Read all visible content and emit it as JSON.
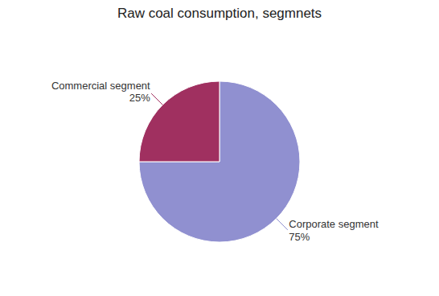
{
  "chart_data": {
    "type": "pie",
    "title": "Raw coal consumption,  segmnets",
    "categories": [
      "Corporate segment",
      "Commercial segment"
    ],
    "values": [
      75,
      25
    ],
    "value_labels": [
      "75%",
      "25%"
    ],
    "colors": [
      "#9090D0",
      "#A03060"
    ],
    "data_labels": true
  }
}
